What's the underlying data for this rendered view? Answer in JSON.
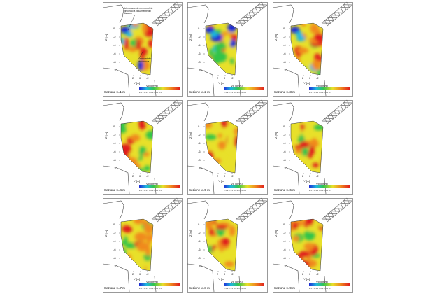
{
  "figure": {
    "panels": [
      {
        "title": "Sezione x=1 m",
        "variant": "blue"
      },
      {
        "title": "Sezione x=2 m",
        "variant": "blue2"
      },
      {
        "title": "Sezione x=3 m",
        "variant": "mix"
      },
      {
        "title": "Sezione x=4 m",
        "variant": "green"
      },
      {
        "title": "Sezione x=5 m",
        "variant": "warm"
      },
      {
        "title": "Sezione x=6 m",
        "variant": "warm"
      },
      {
        "title": "Sezione x=7 m",
        "variant": "green2"
      },
      {
        "title": "Sezione x=8 m",
        "variant": "warm2"
      },
      {
        "title": "Sezione x=9 m",
        "variant": "warm2"
      }
    ],
    "axis_z": "Z [m]",
    "axis_y": "Y [m]",
    "z_ticks": [
      "0",
      "-2",
      "-4",
      "-6",
      "-8",
      "-10"
    ],
    "y_ticks": [
      "2",
      "0",
      "-2"
    ],
    "colorbar_label": "Vp [km/s]",
    "colorbar_ticks": "2.5 3.0 3.5 4.0 4.5 5.0 5.5",
    "annotations": {
      "top": "deterioramento con completo pinto roccia pinuamente del distacco",
      "bottom": "buon contatto pinto roccia"
    },
    "colors": {
      "low": "#1f2bd6",
      "mid_low": "#1fb8e0",
      "mid": "#33c44a",
      "mid_high": "#e8e02a",
      "high_mid": "#f08a1e",
      "high": "#e01e1e",
      "structure": "#6a6a6a"
    }
  }
}
